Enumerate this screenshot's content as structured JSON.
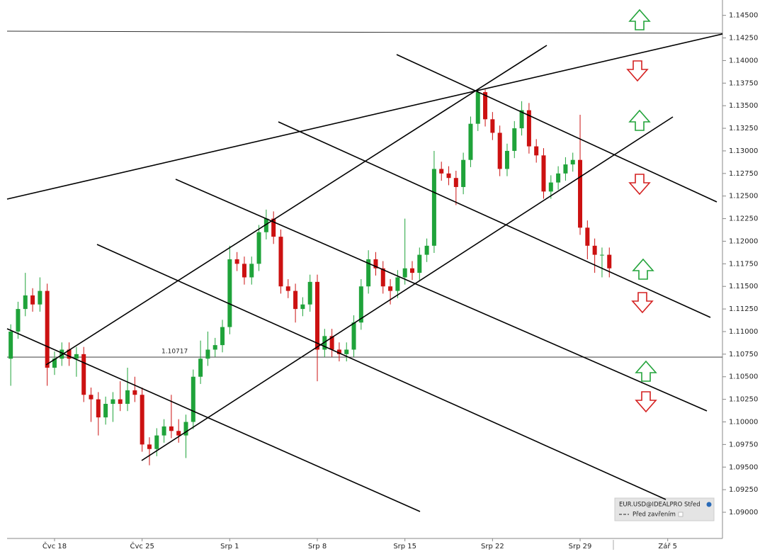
{
  "chart_data": {
    "type": "candlestick",
    "categories": [
      null,
      null,
      null,
      null,
      null,
      null,
      "Čvc 18",
      null,
      null,
      null,
      null,
      null,
      null,
      null,
      null,
      null,
      null,
      null,
      "Čvc 25",
      null,
      null,
      null,
      null,
      null,
      null,
      null,
      null,
      null,
      null,
      null,
      "Srp 1",
      null,
      null,
      null,
      null,
      null,
      null,
      null,
      null,
      null,
      null,
      null,
      "Srp 8",
      null,
      null,
      null,
      null,
      null,
      null,
      null,
      null,
      null,
      null,
      null,
      "Srp 15",
      null,
      null,
      null,
      null,
      null,
      null,
      null,
      null,
      null,
      null,
      null,
      "Srp 22",
      null,
      null,
      null,
      null,
      null,
      null,
      null,
      null,
      null,
      null,
      null,
      "Srp 29",
      null,
      null,
      null,
      null,
      null,
      null,
      null,
      null,
      null,
      null,
      null,
      "Zář 5",
      null,
      null,
      null,
      null,
      null,
      null,
      null
    ],
    "series": [
      {
        "name": "EUR.USD@IDEALPRO Střed",
        "up_color": "#1fa33a",
        "down_color": "#cc1111",
        "open": [
          1.107,
          1.11,
          1.1125,
          1.114,
          1.113,
          1.1145,
          1.106,
          1.107,
          1.108,
          1.107,
          1.1075,
          1.103,
          1.1025,
          1.1005,
          1.102,
          1.1025,
          1.102,
          1.1035,
          1.103,
          1.0975,
          1.097,
          1.0985,
          1.0995,
          1.099,
          1.0985,
          1.1,
          1.105,
          1.107,
          1.108,
          1.1085,
          1.1105,
          1.118,
          1.1175,
          1.116,
          1.1175,
          1.121,
          1.1225,
          1.1205,
          1.115,
          1.1145,
          1.1125,
          1.113,
          1.1155,
          1.108,
          1.1095,
          1.108,
          1.1075,
          1.108,
          1.111,
          1.115,
          1.118,
          1.117,
          1.115,
          1.1145,
          1.116,
          1.117,
          1.1165,
          1.1185,
          1.1195,
          1.128,
          1.1275,
          1.127,
          1.126,
          1.129,
          1.133,
          1.1365,
          1.1335,
          1.132,
          1.128,
          1.13,
          1.1325,
          1.1345,
          1.1305,
          1.1295,
          1.1255,
          1.1265,
          1.1275,
          1.1285,
          1.129,
          1.1215,
          1.1195,
          1.1185,
          1.1185,
          null,
          null,
          null,
          null,
          null,
          null,
          null,
          null,
          null,
          null,
          null,
          null,
          null,
          null,
          null
        ],
        "high": [
          1.1108,
          1.1133,
          1.1165,
          1.1148,
          1.116,
          1.1153,
          1.1078,
          1.1088,
          1.1088,
          1.1083,
          1.1083,
          1.1038,
          1.1033,
          1.1028,
          1.1033,
          1.1045,
          1.106,
          1.105,
          1.1038,
          1.0983,
          1.0993,
          1.1003,
          1.103,
          1.1003,
          1.1008,
          1.1058,
          1.109,
          1.11,
          1.1093,
          1.1113,
          1.1195,
          1.1188,
          1.1183,
          1.1183,
          1.1218,
          1.1235,
          1.1233,
          1.1213,
          1.1158,
          1.1153,
          1.1138,
          1.1163,
          1.1163,
          1.1103,
          1.1103,
          1.1088,
          1.1088,
          1.1118,
          1.1158,
          1.119,
          1.1188,
          1.1178,
          1.1158,
          1.1168,
          1.1225,
          1.1178,
          1.1193,
          1.1203,
          1.13,
          1.1288,
          1.1283,
          1.1278,
          1.1298,
          1.1338,
          1.1368,
          1.1368,
          1.1343,
          1.1328,
          1.1308,
          1.1333,
          1.1355,
          1.1353,
          1.1313,
          1.1303,
          1.1273,
          1.1283,
          1.1293,
          1.1298,
          1.134,
          1.1223,
          1.1203,
          1.1193,
          1.1193,
          null,
          null,
          null,
          null,
          null,
          null,
          null,
          null,
          null,
          null,
          null,
          null,
          null,
          null,
          null
        ],
        "low": [
          1.104,
          1.1092,
          1.1117,
          1.1122,
          1.1122,
          1.104,
          1.1052,
          1.1062,
          1.1062,
          1.105,
          1.1022,
          1.1,
          1.0985,
          1.0997,
          1.1,
          1.1012,
          1.1012,
          1.1022,
          1.0967,
          1.0952,
          1.0962,
          1.0977,
          1.0982,
          1.0977,
          1.096,
          1.0992,
          1.1042,
          1.1062,
          1.1072,
          1.1077,
          1.1097,
          1.1167,
          1.1152,
          1.1152,
          1.1167,
          1.1202,
          1.1197,
          1.1142,
          1.1137,
          1.111,
          1.1117,
          1.1122,
          1.1045,
          1.1072,
          1.1072,
          1.1067,
          1.1067,
          1.1072,
          1.1102,
          1.1142,
          1.1162,
          1.1142,
          1.113,
          1.1137,
          1.1152,
          1.1157,
          1.1157,
          1.1177,
          1.1187,
          1.1267,
          1.1262,
          1.124,
          1.1252,
          1.1282,
          1.1322,
          1.1327,
          1.1312,
          1.1272,
          1.1272,
          1.1292,
          1.1317,
          1.1297,
          1.1287,
          1.1247,
          1.1247,
          1.1257,
          1.1267,
          1.1277,
          1.1207,
          1.118,
          1.1165,
          1.116,
          1.116,
          null,
          null,
          null,
          null,
          null,
          null,
          null,
          null,
          null,
          null,
          null,
          null,
          null,
          null,
          null
        ],
        "close": [
          1.11,
          1.1125,
          1.114,
          1.113,
          1.1145,
          1.106,
          1.107,
          1.108,
          1.107,
          1.1075,
          1.103,
          1.1025,
          1.1005,
          1.102,
          1.1025,
          1.102,
          1.1035,
          1.103,
          1.0975,
          1.097,
          1.0985,
          1.0995,
          1.099,
          1.0985,
          1.1,
          1.105,
          1.107,
          1.108,
          1.1085,
          1.1105,
          1.118,
          1.1175,
          1.116,
          1.1175,
          1.121,
          1.1225,
          1.1205,
          1.115,
          1.1145,
          1.1125,
          1.113,
          1.1155,
          1.108,
          1.1095,
          1.108,
          1.1075,
          1.108,
          1.111,
          1.115,
          1.118,
          1.117,
          1.115,
          1.1145,
          1.116,
          1.117,
          1.1165,
          1.1185,
          1.1195,
          1.128,
          1.1275,
          1.127,
          1.126,
          1.129,
          1.133,
          1.1365,
          1.1335,
          1.132,
          1.128,
          1.13,
          1.1325,
          1.1345,
          1.1305,
          1.1295,
          1.1255,
          1.1265,
          1.1275,
          1.1285,
          1.129,
          1.1215,
          1.1195,
          1.1185,
          1.1185,
          1.117,
          null,
          null,
          null,
          null,
          null,
          null,
          null,
          null,
          null,
          null,
          null,
          null,
          null,
          null,
          null
        ]
      }
    ],
    "ylim": [
      1.0871,
      1.1467
    ],
    "yticks": [
      {
        "value": 1.09,
        "label": "1.09000"
      },
      {
        "value": 1.0925,
        "label": "1.09250"
      },
      {
        "value": 1.095,
        "label": "1.09500"
      },
      {
        "value": 1.0975,
        "label": "1.09750"
      },
      {
        "value": 1.1,
        "label": "1.10000"
      },
      {
        "value": 1.1025,
        "label": "1.10250"
      },
      {
        "value": 1.105,
        "label": "1.10500"
      },
      {
        "value": 1.1075,
        "label": "1.10750"
      },
      {
        "value": 1.11,
        "label": "1.11000"
      },
      {
        "value": 1.1125,
        "label": "1.11250"
      },
      {
        "value": 1.115,
        "label": "1.11500"
      },
      {
        "value": 1.1175,
        "label": "1.11750"
      },
      {
        "value": 1.12,
        "label": "1.12000"
      },
      {
        "value": 1.1225,
        "label": "1.12250"
      },
      {
        "value": 1.125,
        "label": "1.12500"
      },
      {
        "value": 1.1275,
        "label": "1.12750"
      },
      {
        "value": 1.13,
        "label": "1.13000"
      },
      {
        "value": 1.1325,
        "label": "1.13250"
      },
      {
        "value": 1.135,
        "label": "1.13500"
      },
      {
        "value": 1.1375,
        "label": "1.13750"
      },
      {
        "value": 1.14,
        "label": "1.14000"
      },
      {
        "value": 1.1425,
        "label": "1.14250"
      },
      {
        "value": 1.145,
        "label": "1.14500"
      }
    ],
    "grid": false,
    "hline": 1.10717,
    "legend_note": "Před zavřením"
  }
}
